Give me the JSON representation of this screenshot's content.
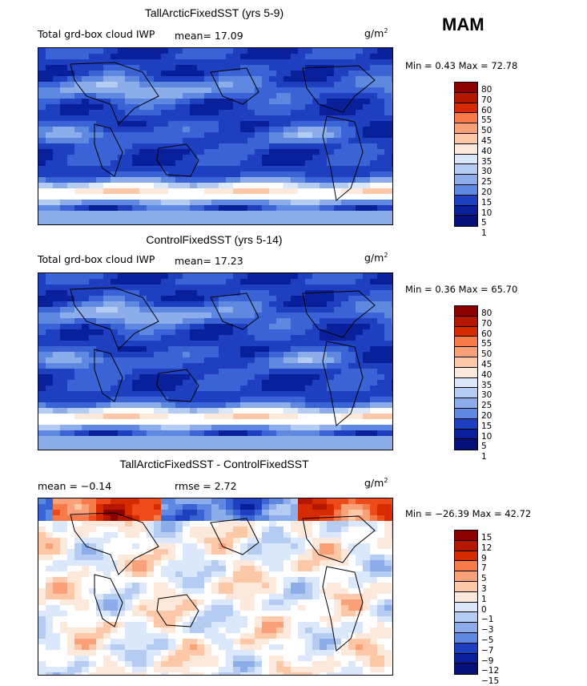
{
  "season": "MAM",
  "palettes": {
    "abs": [
      "#8b0000",
      "#b31700",
      "#d62a00",
      "#ef4a1a",
      "#f77a4a",
      "#fba179",
      "#fdc8a8",
      "#fde8dc",
      "#ffffff",
      "#dbe7fa",
      "#b4cbf2",
      "#8cacea",
      "#5f88e0",
      "#3a63d6",
      "#1e3fc0",
      "#0a1f9a",
      "#06107a"
    ],
    "diff": [
      "#8b0000",
      "#b31700",
      "#d62a00",
      "#ef4a1a",
      "#f77a4a",
      "#fba179",
      "#fdc8a8",
      "#fde8dc",
      "#ffffff",
      "#dbe7fa",
      "#b4cbf2",
      "#8cacea",
      "#5f88e0",
      "#3a63d6",
      "#1e3fc0",
      "#0a1f9a",
      "#06107a"
    ]
  },
  "panels": [
    {
      "title": "TallArcticFixedSST (yrs 5-9)",
      "variable": "Total grd-box cloud IWP",
      "stat_text": "mean=  17.09",
      "rmse_text": "",
      "units": "g/m",
      "units_exp": "2",
      "minmax": "Min =    0.43 Max =   72.78",
      "levels": [
        "80",
        "70",
        "60",
        "55",
        "50",
        "45",
        "40",
        "35",
        "30",
        "25",
        "20",
        "15",
        "10",
        "5",
        "1"
      ]
    },
    {
      "title": "ControlFixedSST (yrs 5-14)",
      "variable": "Total grd-box cloud IWP",
      "stat_text": "mean=  17.23",
      "rmse_text": "",
      "units": "g/m",
      "units_exp": "2",
      "minmax": "Min =    0.36 Max =   65.70",
      "levels": [
        "80",
        "70",
        "60",
        "55",
        "50",
        "45",
        "40",
        "35",
        "30",
        "25",
        "20",
        "15",
        "10",
        "5",
        "1"
      ]
    },
    {
      "title": "TallArcticFixedSST - ControlFixedSST",
      "variable": "",
      "stat_text": "mean =  −0.14",
      "rmse_text": "rmse =    2.72",
      "units": "g/m",
      "units_exp": "2",
      "minmax": "Min = −26.39 Max =   42.72",
      "levels": [
        "15",
        "12",
        "9",
        "7",
        "5",
        "3",
        "1",
        "0",
        "−1",
        "−3",
        "−5",
        "−7",
        "−9",
        "−12",
        "−15"
      ]
    }
  ]
}
